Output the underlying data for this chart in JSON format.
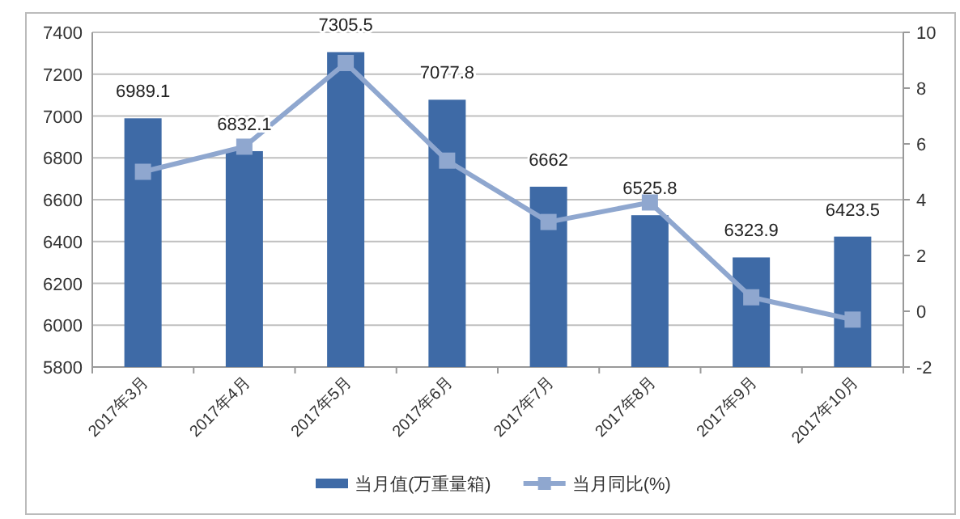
{
  "chart_data": {
    "type": "bar",
    "categories": [
      "2017年3月",
      "2017年4月",
      "2017年5月",
      "2017年6月",
      "2017年7月",
      "2017年8月",
      "2017年9月",
      "2017年10月"
    ],
    "series": [
      {
        "name": "当月值(万重量箱)",
        "color": "#3e6aa6",
        "values": [
          6989.1,
          6832.1,
          7305.5,
          7077.8,
          6662,
          6525.8,
          6323.9,
          6423.5
        ],
        "value_labels": [
          "6989.1",
          "6832.1",
          "7305.5",
          "7077.8",
          "6662",
          "6525.8",
          "6323.9",
          "6423.5"
        ]
      },
      {
        "name": "当月同比(%)",
        "type": "line",
        "axis": "y2",
        "color": "#8fa7cf",
        "marker": "square",
        "values": [
          5.0,
          5.9,
          8.9,
          5.4,
          3.2,
          3.9,
          0.5,
          -0.3
        ]
      }
    ],
    "ylim": [
      5800,
      7400
    ],
    "yticks": [
      5800,
      6000,
      6200,
      6400,
      6600,
      6800,
      7000,
      7200,
      7400
    ],
    "y2lim": [
      -2,
      10
    ],
    "y2ticks": [
      -2,
      0,
      2,
      4,
      6,
      8,
      10
    ],
    "grid": "y",
    "legend": "bottom"
  }
}
